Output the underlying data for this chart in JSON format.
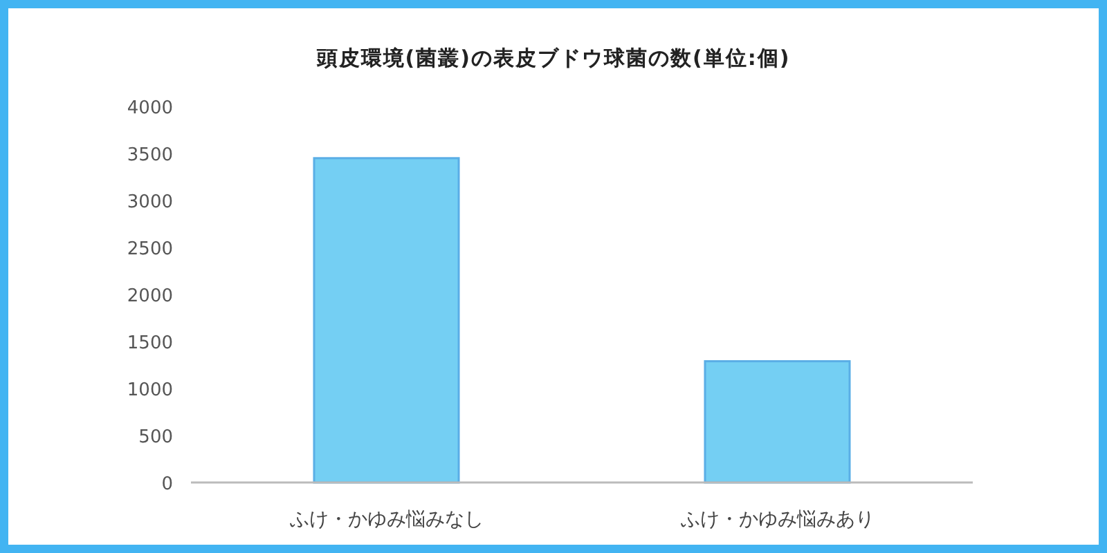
{
  "chart_data": {
    "type": "bar",
    "title": "頭皮環境(菌叢)の表皮ブドウ球菌の数(単位:個)",
    "categories": [
      "ふけ・かゆみ悩みなし",
      "ふけ・かゆみ悩みあり"
    ],
    "values": [
      3450,
      1290
    ],
    "color": "#74cff3",
    "ylim": [
      0,
      4000
    ],
    "yticks": [
      0,
      500,
      1000,
      1500,
      2000,
      2500,
      3000,
      3500,
      4000
    ],
    "grid": false
  }
}
